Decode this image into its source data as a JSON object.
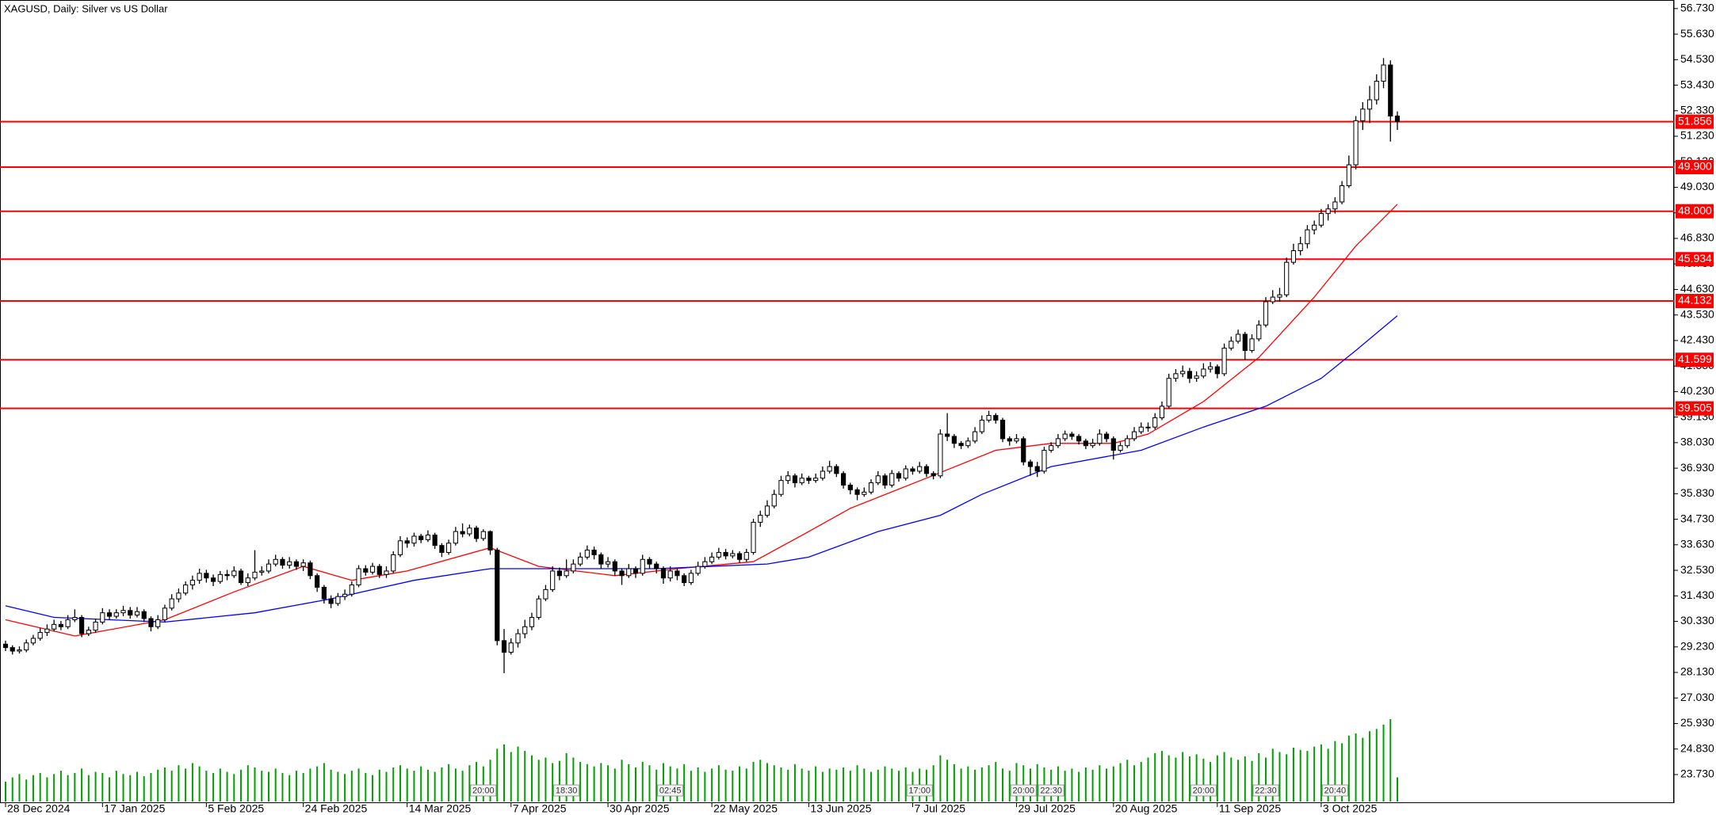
{
  "chart_data": {
    "type": "candlestick",
    "title": "XAGUSD, Daily:  Silver vs US Dollar",
    "categories": [
      "28 Dec 2024",
      null,
      null,
      null,
      null,
      null,
      null,
      null,
      null,
      null,
      null,
      null,
      null,
      null,
      "17 Jan 2025",
      null,
      null,
      null,
      null,
      null,
      null,
      null,
      null,
      null,
      null,
      null,
      null,
      null,
      null,
      "5 Feb 2025",
      null,
      null,
      null,
      null,
      null,
      null,
      null,
      null,
      null,
      null,
      null,
      null,
      null,
      "24 Feb 2025",
      null,
      null,
      null,
      null,
      null,
      null,
      null,
      null,
      null,
      null,
      null,
      null,
      null,
      null,
      "14 Mar 2025",
      null,
      null,
      null,
      null,
      null,
      null,
      null,
      null,
      null,
      null,
      null,
      null,
      null,
      null,
      "7 Apr 2025",
      null,
      null,
      null,
      null,
      null,
      null,
      null,
      null,
      null,
      null,
      null,
      null,
      null,
      "30 Apr 2025",
      null,
      null,
      null,
      null,
      null,
      null,
      null,
      null,
      null,
      null,
      null,
      null,
      null,
      null,
      "22 May 2025",
      null,
      null,
      null,
      null,
      null,
      null,
      null,
      null,
      null,
      null,
      null,
      null,
      null,
      "13 Jun 2025",
      null,
      null,
      null,
      null,
      null,
      null,
      null,
      null,
      null,
      null,
      null,
      null,
      null,
      null,
      "7 Jul 2025",
      null,
      null,
      null,
      null,
      null,
      null,
      null,
      null,
      null,
      null,
      null,
      null,
      null,
      null,
      "29 Jul 2025",
      null,
      null,
      null,
      null,
      null,
      null,
      null,
      null,
      null,
      null,
      null,
      null,
      null,
      "20 Aug 2025",
      null,
      null,
      null,
      null,
      null,
      null,
      null,
      null,
      null,
      null,
      null,
      null,
      null,
      null,
      "11 Sep 2025",
      null,
      null,
      null,
      null,
      null,
      null,
      null,
      null,
      null,
      null,
      null,
      null,
      null,
      null,
      "3 Oct 2025",
      null,
      null,
      null,
      null,
      null,
      null,
      null,
      null,
      null,
      null,
      null
    ],
    "open": [
      29.35,
      29.2,
      29.05,
      29.1,
      29.4,
      29.6,
      29.85,
      30,
      30.2,
      30.1,
      30.4,
      30.5,
      29.8,
      29.95,
      30.3,
      30.7,
      30.55,
      30.7,
      30.8,
      30.6,
      30.75,
      30.45,
      30.1,
      30.4,
      30.9,
      31.3,
      31.55,
      31.9,
      32.1,
      32.4,
      32.2,
      32.05,
      32.35,
      32.3,
      32.5,
      32,
      32.2,
      32.45,
      32.5,
      32.8,
      33,
      32.75,
      32.9,
      32.7,
      32.85,
      32.3,
      31.8,
      31.3,
      31.1,
      31.4,
      31.5,
      31.9,
      32.6,
      32.45,
      32.7,
      32.35,
      32.5,
      33.2,
      33.8,
      33.7,
      34,
      33.85,
      34.05,
      33.6,
      33.3,
      33.7,
      34.2,
      34.1,
      34.35,
      33.9,
      34.2,
      33.4,
      29.5,
      29,
      29.4,
      29.8,
      30.1,
      30.5,
      31.3,
      31.7,
      32.5,
      32.3,
      32.5,
      32.8,
      33.1,
      33.4,
      33.2,
      32.8,
      32.9,
      32.5,
      32.3,
      32.6,
      32.4,
      33,
      32.8,
      32.6,
      32.2,
      32.5,
      32.3,
      32,
      32.4,
      32.7,
      32.9,
      33.1,
      33.3,
      33.15,
      33.25,
      33,
      33.3,
      34.6,
      34.9,
      35.3,
      35.8,
      36.4,
      36.6,
      36.3,
      36.5,
      36.4,
      36.5,
      36.8,
      37,
      36.7,
      36.2,
      36,
      35.8,
      35.9,
      36.3,
      36.6,
      36.2,
      36.7,
      36.5,
      36.9,
      36.8,
      37,
      36.7,
      36.6,
      38.4,
      38.3,
      38,
      37.9,
      38.1,
      38.5,
      39,
      39.2,
      39,
      38.2,
      38.1,
      38.2,
      37.2,
      37,
      36.8,
      37.7,
      37.9,
      38.2,
      38.4,
      38.3,
      38.1,
      37.9,
      38,
      38.4,
      38.2,
      37.7,
      37.9,
      38.2,
      38.5,
      38.7,
      38.7,
      39.1,
      39.6,
      40.8,
      41,
      41.1,
      40.8,
      40.9,
      41.2,
      41.3,
      41,
      42.1,
      42.4,
      42.7,
      42,
      42.5,
      43.1,
      44.1,
      44.3,
      44.4,
      45.8,
      46.3,
      46.6,
      47.2,
      47.4,
      47.9,
      48.1,
      48.4,
      49.1,
      50,
      51.9,
      52.4,
      52.8,
      53.6,
      54.3,
      52.1
    ],
    "high": [
      29.5,
      29.3,
      29.25,
      29.55,
      29.75,
      30.05,
      30.2,
      30.4,
      30.35,
      30.6,
      30.85,
      30.6,
      30.1,
      30.45,
      30.9,
      30.85,
      30.85,
      31,
      30.95,
      30.95,
      30.85,
      30.55,
      30.6,
      31.05,
      31.5,
      31.75,
      32.05,
      32.3,
      32.6,
      32.55,
      32.35,
      32.5,
      32.55,
      32.7,
      32.6,
      32.4,
      33.4,
      32.7,
      33,
      33.2,
      33.1,
      33.1,
      33,
      33,
      32.95,
      32.4,
      31.9,
      31.45,
      31.55,
      31.7,
      32.05,
      32.75,
      32.75,
      32.85,
      32.8,
      32.7,
      33.35,
      34,
      33.95,
      34.15,
      34.1,
      34.25,
      34.15,
      33.7,
      33.85,
      34.4,
      34.55,
      34.5,
      34.45,
      34.3,
      34.25,
      33.5,
      30,
      29.6,
      30,
      30.4,
      30.7,
      31.45,
      31.9,
      32.7,
      32.65,
      33,
      33,
      33.3,
      33.6,
      33.55,
      33.3,
      33.1,
      33,
      32.6,
      32.8,
      32.7,
      33.2,
      33.1,
      32.9,
      32.7,
      32.7,
      32.6,
      32.4,
      32.55,
      32.9,
      33.1,
      33.3,
      33.5,
      33.45,
      33.4,
      33.35,
      33.45,
      34.75,
      35.1,
      35.55,
      36,
      36.6,
      36.8,
      36.7,
      36.7,
      36.6,
      36.7,
      37,
      37.25,
      37.1,
      36.8,
      36.3,
      36.1,
      36.1,
      36.45,
      36.8,
      36.7,
      36.85,
      36.8,
      37.05,
      37,
      37.2,
      37.1,
      36.8,
      38.6,
      39.3,
      38.4,
      38.1,
      38.25,
      38.7,
      39.2,
      39.4,
      39.3,
      39.1,
      38.3,
      38.4,
      38.3,
      37.3,
      37.2,
      37.85,
      38.05,
      38.4,
      38.55,
      38.5,
      38.4,
      38.2,
      38.2,
      38.6,
      38.5,
      38.3,
      38.05,
      38.35,
      38.7,
      38.9,
      38.9,
      39.3,
      39.8,
      41,
      41.2,
      41.35,
      41.25,
      41.1,
      41.45,
      41.5,
      41.4,
      42.3,
      42.6,
      42.9,
      42.8,
      42.7,
      43.3,
      44.3,
      44.6,
      44.7,
      46,
      46.6,
      46.9,
      47.4,
      47.6,
      48.1,
      48.3,
      48.6,
      49.3,
      50.4,
      52.1,
      52.7,
      53.4,
      53.9,
      54.6,
      54.5,
      52.3
    ],
    "low": [
      29.05,
      28.9,
      28.95,
      29,
      29.3,
      29.5,
      29.7,
      29.9,
      29.95,
      30,
      30.3,
      29.65,
      29.7,
      29.85,
      30.2,
      30.4,
      30.45,
      30.55,
      30.45,
      30.5,
      30.3,
      29.9,
      30,
      30.3,
      30.8,
      31.15,
      31.45,
      31.7,
      31.95,
      32,
      31.85,
      31.95,
      32.1,
      32.2,
      31.9,
      31.85,
      32.1,
      32.3,
      32.4,
      32.7,
      32.6,
      32.6,
      32.55,
      32.5,
      32.15,
      31.6,
      31.1,
      30.9,
      31,
      31.25,
      31.4,
      31.8,
      32.3,
      32.35,
      32.2,
      32.2,
      32.4,
      33.1,
      33.5,
      33.55,
      33.7,
      33.75,
      33.45,
      33.1,
      33.2,
      33.6,
      33.95,
      34,
      33.75,
      33.8,
      33.2,
      29.3,
      28.1,
      28.9,
      29.2,
      29.6,
      29.95,
      30.4,
      31.2,
      31.6,
      32.1,
      32.2,
      32.4,
      32.7,
      33,
      33,
      32.6,
      32.65,
      32.3,
      31.9,
      32.2,
      32.2,
      32.3,
      32.6,
      32.4,
      31.95,
      32.05,
      32.1,
      31.85,
      31.9,
      32.3,
      32.6,
      32.8,
      33,
      33,
      33.05,
      32.85,
      32.9,
      33.2,
      34.4,
      34.8,
      35.2,
      35.7,
      36.25,
      36.1,
      36.2,
      36.25,
      36.3,
      36.4,
      36.7,
      36.55,
      36.05,
      35.8,
      35.55,
      35.7,
      35.8,
      36.2,
      36.05,
      36.1,
      36.35,
      36.4,
      36.65,
      36.7,
      36.55,
      36.45,
      36.5,
      38.1,
      37.8,
      37.75,
      37.8,
      38,
      38.4,
      38.9,
      38.85,
      38.05,
      37.9,
      38,
      37.05,
      36.6,
      36.55,
      36.7,
      37.6,
      37.8,
      38.1,
      38.15,
      37.95,
      37.75,
      37.8,
      37.9,
      38.05,
      37.3,
      37.6,
      37.8,
      38.1,
      38.4,
      38.5,
      38.6,
      39,
      39.5,
      40.65,
      40.85,
      40.6,
      40.65,
      40.8,
      41.05,
      40.8,
      40.9,
      42,
      42.3,
      41.6,
      41.9,
      42.4,
      43,
      44,
      44.1,
      44.3,
      45.7,
      46.1,
      46.4,
      47,
      47.3,
      47.6,
      47.9,
      48.3,
      49,
      49.8,
      51.5,
      51.8,
      52.6,
      53.3,
      51,
      51.5
    ],
    "close": [
      29.2,
      29.05,
      29.1,
      29.4,
      29.6,
      29.85,
      30,
      30.2,
      30.1,
      30.4,
      30.5,
      29.8,
      29.95,
      30.3,
      30.7,
      30.55,
      30.7,
      30.8,
      30.6,
      30.75,
      30.45,
      30.1,
      30.4,
      30.9,
      31.3,
      31.55,
      31.9,
      32.1,
      32.4,
      32.2,
      32.05,
      32.35,
      32.3,
      32.5,
      32,
      32.2,
      32.45,
      32.5,
      32.8,
      33,
      32.75,
      32.9,
      32.7,
      32.85,
      32.3,
      31.8,
      31.3,
      31.1,
      31.4,
      31.5,
      31.9,
      32.6,
      32.45,
      32.7,
      32.35,
      32.5,
      33.2,
      33.8,
      33.7,
      34,
      33.85,
      34.05,
      33.6,
      33.3,
      33.7,
      34.2,
      34.1,
      34.35,
      33.9,
      34.2,
      33.4,
      29.5,
      29,
      29.4,
      29.8,
      30.1,
      30.5,
      31.3,
      31.7,
      32.5,
      32.3,
      32.5,
      32.8,
      33.1,
      33.4,
      33.2,
      32.8,
      32.9,
      32.5,
      32.3,
      32.6,
      32.4,
      33,
      32.8,
      32.6,
      32.2,
      32.5,
      32.3,
      32,
      32.4,
      32.7,
      32.9,
      33.1,
      33.3,
      33.15,
      33.25,
      33,
      33.3,
      34.6,
      34.9,
      35.3,
      35.8,
      36.4,
      36.6,
      36.3,
      36.5,
      36.4,
      36.5,
      36.8,
      37,
      36.7,
      36.2,
      36,
      35.8,
      35.9,
      36.3,
      36.6,
      36.2,
      36.7,
      36.5,
      36.9,
      36.8,
      37,
      36.7,
      36.6,
      38.4,
      38.3,
      38,
      37.9,
      38.1,
      38.5,
      39,
      39.2,
      39,
      38.2,
      38.1,
      38.2,
      37.2,
      37,
      36.8,
      37.7,
      37.9,
      38.2,
      38.4,
      38.3,
      38.1,
      37.9,
      38,
      38.4,
      38.2,
      37.7,
      37.9,
      38.2,
      38.5,
      38.7,
      38.7,
      39.1,
      39.6,
      40.8,
      41,
      41.1,
      40.8,
      40.9,
      41.2,
      41.3,
      41,
      42.1,
      42.4,
      42.7,
      42,
      42.5,
      43.1,
      44.1,
      44.3,
      44.4,
      45.8,
      46.3,
      46.6,
      47.2,
      47.4,
      47.9,
      48.1,
      48.4,
      49.1,
      50,
      51.9,
      52.4,
      52.8,
      53.6,
      54.3,
      52.1,
      51.86
    ],
    "volume": [
      18,
      22,
      25,
      20,
      24,
      26,
      22,
      25,
      28,
      24,
      26,
      30,
      24,
      27,
      26,
      22,
      28,
      25,
      24,
      27,
      23,
      26,
      29,
      31,
      28,
      33,
      30,
      35,
      32,
      28,
      26,
      30,
      27,
      25,
      29,
      33,
      31,
      28,
      27,
      30,
      26,
      24,
      28,
      26,
      30,
      32,
      35,
      29,
      27,
      25,
      28,
      30,
      26,
      24,
      29,
      27,
      31,
      33,
      30,
      28,
      32,
      29,
      27,
      31,
      34,
      30,
      28,
      33,
      36,
      32,
      38,
      48,
      52,
      45,
      50,
      46,
      42,
      38,
      40,
      35,
      37,
      44,
      40,
      36,
      34,
      32,
      35,
      33,
      30,
      38,
      34,
      31,
      36,
      33,
      29,
      35,
      32,
      30,
      34,
      28,
      31,
      27,
      30,
      33,
      29,
      28,
      32,
      30,
      36,
      38,
      35,
      33,
      31,
      29,
      34,
      30,
      28,
      32,
      27,
      30,
      29,
      31,
      28,
      33,
      30,
      27,
      29,
      32,
      30,
      28,
      31,
      27,
      30,
      29,
      33,
      42,
      38,
      34,
      30,
      32,
      29,
      31,
      33,
      36,
      30,
      28,
      35,
      33,
      30,
      34,
      31,
      29,
      32,
      28,
      30,
      27,
      31,
      29,
      33,
      30,
      32,
      35,
      38,
      33,
      36,
      40,
      44,
      46,
      42,
      40,
      45,
      41,
      43,
      39,
      36,
      42,
      45,
      40,
      38,
      41,
      37,
      44,
      40,
      48,
      45,
      43,
      49,
      47,
      46,
      50,
      52,
      48,
      55,
      53,
      60,
      62,
      58,
      64,
      66,
      70,
      75,
      22
    ],
    "volume_color": "#00a000",
    "up_color": "#ffffff",
    "down_color": "#000000",
    "ylim": [
      22.5,
      57.1
    ],
    "yticks": [
      {
        "value": 56.73,
        "label": "56.730"
      },
      {
        "value": 55.63,
        "label": "55.630"
      },
      {
        "value": 54.53,
        "label": "54.530"
      },
      {
        "value": 53.43,
        "label": "53.430"
      },
      {
        "value": 52.33,
        "label": "52.330"
      },
      {
        "value": 51.23,
        "label": "51.230"
      },
      {
        "value": 50.13,
        "label": "50.130"
      },
      {
        "value": 49.03,
        "label": "49.030"
      },
      {
        "value": 47.93,
        "label": "47.930"
      },
      {
        "value": 46.83,
        "label": "46.830"
      },
      {
        "value": 45.73,
        "label": "45.730"
      },
      {
        "value": 44.63,
        "label": "44.630"
      },
      {
        "value": 43.53,
        "label": "43.530"
      },
      {
        "value": 42.43,
        "label": "42.430"
      },
      {
        "value": 41.33,
        "label": "41.330"
      },
      {
        "value": 40.23,
        "label": "40.230"
      },
      {
        "value": 39.13,
        "label": "39.130"
      },
      {
        "value": 38.03,
        "label": "38.030"
      },
      {
        "value": 36.93,
        "label": "36.930"
      },
      {
        "value": 35.83,
        "label": "35.830"
      },
      {
        "value": 34.73,
        "label": "34.730"
      },
      {
        "value": 33.63,
        "label": "33.630"
      },
      {
        "value": 32.53,
        "label": "32.530"
      },
      {
        "value": 31.43,
        "label": "31.430"
      },
      {
        "value": 30.33,
        "label": "30.330"
      },
      {
        "value": 29.23,
        "label": "29.230"
      },
      {
        "value": 28.13,
        "label": "28.130"
      },
      {
        "value": 27.03,
        "label": "27.030"
      },
      {
        "value": 25.93,
        "label": "25.930"
      },
      {
        "value": 24.83,
        "label": "24.830"
      },
      {
        "value": 23.73,
        "label": "23.730"
      }
    ],
    "levels": [
      {
        "value": 51.856,
        "label": "51.856"
      },
      {
        "value": 49.9,
        "label": "49.900"
      },
      {
        "value": 48,
        "label": "48.000"
      },
      {
        "value": 45.934,
        "label": "45.934"
      },
      {
        "value": 44.132,
        "label": "44.132"
      },
      {
        "value": 41.599,
        "label": "41.599"
      },
      {
        "value": 39.505,
        "label": "39.505"
      }
    ],
    "level_color": "#ff0000",
    "moving_averages": [
      {
        "color": "#ff0000",
        "x": [
          0,
          10,
          23,
          33,
          43,
          50,
          58,
          70,
          77,
          88,
          97,
          108,
          116,
          122,
          133,
          143,
          151,
          160,
          165,
          173,
          181,
          189,
          195,
          201
        ],
        "values": [
          30.4,
          29.7,
          30.4,
          31.6,
          32.7,
          32.1,
          32.5,
          33.5,
          32.7,
          32.3,
          32.6,
          32.9,
          34.2,
          35.2,
          36.5,
          37.7,
          38,
          38,
          38.4,
          39.8,
          41.7,
          44.3,
          46.5,
          48.3
        ]
      },
      {
        "color": "#0000ff",
        "x": [
          0,
          7,
          23,
          36,
          47,
          59,
          70,
          81,
          94,
          110,
          116,
          126,
          135,
          141,
          151,
          164,
          173,
          182,
          190,
          195,
          201
        ],
        "values": [
          31,
          30.5,
          30.3,
          30.7,
          31.3,
          32.1,
          32.6,
          32.6,
          32.6,
          32.8,
          33.1,
          34.2,
          34.9,
          35.8,
          37,
          37.7,
          38.7,
          39.6,
          40.8,
          42,
          43.5
        ]
      }
    ],
    "events": [
      {
        "x": 69,
        "label": "20:00"
      },
      {
        "x": 81,
        "label": "18:30"
      },
      {
        "x": 96,
        "label": "02:45"
      },
      {
        "x": 132,
        "label": "17:00"
      },
      {
        "x": 147,
        "label": "20:00"
      },
      {
        "x": 151,
        "label": "22:30"
      },
      {
        "x": 173,
        "label": "20:00"
      },
      {
        "x": 182,
        "label": "22:30"
      },
      {
        "x": 192,
        "label": "20:40"
      }
    ]
  }
}
